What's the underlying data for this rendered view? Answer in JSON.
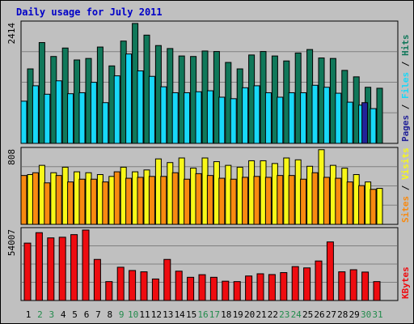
{
  "title": "Daily usage for July 2011",
  "colors": {
    "background": "#c0c0c0",
    "title": "#0000c8",
    "hits": "#10785a",
    "files": "#18d8f8",
    "pages": "#222298",
    "visits": "#f8f818",
    "sites": "#f88a10",
    "kbytes": "#ee0c10",
    "weekday_label": "#000000",
    "weekend_label": "#228b4c"
  },
  "chart_data": [
    {
      "type": "bar",
      "panel": "hits-files-pages",
      "max_label": "2414",
      "ylim": [
        0,
        2414
      ],
      "categories": [
        "1",
        "2",
        "3",
        "4",
        "5",
        "6",
        "7",
        "8",
        "9",
        "10",
        "11",
        "12",
        "13",
        "14",
        "15",
        "16",
        "17",
        "18",
        "19",
        "20",
        "21",
        "22",
        "23",
        "24",
        "25",
        "26",
        "27",
        "28",
        "29",
        "30",
        "31"
      ],
      "weekend_days": [
        2,
        3,
        9,
        10,
        16,
        17,
        23,
        24,
        30,
        31
      ],
      "legend": [
        "Hits",
        "Files",
        "Pages"
      ],
      "series": [
        {
          "name": "Hits",
          "values": [
            1500,
            2030,
            1750,
            1920,
            1680,
            1710,
            1940,
            1560,
            2060,
            2415,
            2180,
            1970,
            1910,
            1760,
            1750,
            1860,
            1850,
            1630,
            1500,
            1780,
            1850,
            1760,
            1660,
            1820,
            1890,
            1720,
            1710,
            1470,
            1340,
            1130,
            1110
          ]
        },
        {
          "name": "Files",
          "values": [
            850,
            1160,
            990,
            1260,
            1000,
            1020,
            1230,
            820,
            1360,
            1800,
            1460,
            1350,
            1140,
            1020,
            1020,
            1040,
            1060,
            930,
            900,
            1120,
            1160,
            1020,
            930,
            1020,
            1020,
            1170,
            1130,
            1010,
            830,
            770,
            700
          ]
        },
        {
          "name": "Pages",
          "values": [
            0,
            0,
            0,
            0,
            0,
            0,
            0,
            0,
            0,
            0,
            0,
            0,
            0,
            0,
            0,
            0,
            0,
            0,
            0,
            0,
            0,
            0,
            0,
            0,
            0,
            0,
            0,
            0,
            0,
            820,
            0
          ]
        }
      ]
    },
    {
      "type": "bar",
      "panel": "visits-sites",
      "max_label": "808",
      "ylim": [
        0,
        808
      ],
      "categories": [
        "1",
        "2",
        "3",
        "4",
        "5",
        "6",
        "7",
        "8",
        "9",
        "10",
        "11",
        "12",
        "13",
        "14",
        "15",
        "16",
        "17",
        "18",
        "19",
        "20",
        "21",
        "22",
        "23",
        "24",
        "25",
        "26",
        "27",
        "28",
        "29",
        "30",
        "31"
      ],
      "legend": [
        "Visits",
        "Sites"
      ],
      "series": [
        {
          "name": "Visits",
          "values": [
            540,
            640,
            560,
            620,
            570,
            560,
            540,
            520,
            620,
            570,
            590,
            710,
            670,
            720,
            610,
            720,
            680,
            640,
            620,
            690,
            690,
            660,
            720,
            700,
            630,
            810,
            640,
            610,
            540,
            460,
            390
          ]
        },
        {
          "name": "Sites",
          "values": [
            530,
            560,
            450,
            530,
            460,
            490,
            490,
            460,
            570,
            500,
            510,
            520,
            520,
            560,
            490,
            550,
            530,
            500,
            490,
            510,
            520,
            510,
            530,
            530,
            490,
            560,
            510,
            500,
            460,
            420,
            380
          ]
        }
      ]
    },
    {
      "type": "bar",
      "panel": "kbytes",
      "max_label": "54007",
      "ylim": [
        0,
        54007
      ],
      "categories": [
        "1",
        "2",
        "3",
        "4",
        "5",
        "6",
        "7",
        "8",
        "9",
        "10",
        "11",
        "12",
        "13",
        "14",
        "15",
        "16",
        "17",
        "18",
        "19",
        "20",
        "21",
        "22",
        "23",
        "24",
        "25",
        "26",
        "27",
        "28",
        "29",
        "30",
        "31"
      ],
      "legend": [
        "KBytes"
      ],
      "series": [
        {
          "name": "KBytes",
          "values": [
            44000,
            52000,
            48000,
            48500,
            50500,
            54000,
            31500,
            14500,
            25500,
            23000,
            22000,
            16500,
            31500,
            22500,
            17800,
            19800,
            17800,
            14800,
            14500,
            18800,
            20500,
            19900,
            21400,
            26000,
            25000,
            30300,
            44900,
            22000,
            23600,
            21800,
            14500
          ]
        }
      ]
    }
  ]
}
